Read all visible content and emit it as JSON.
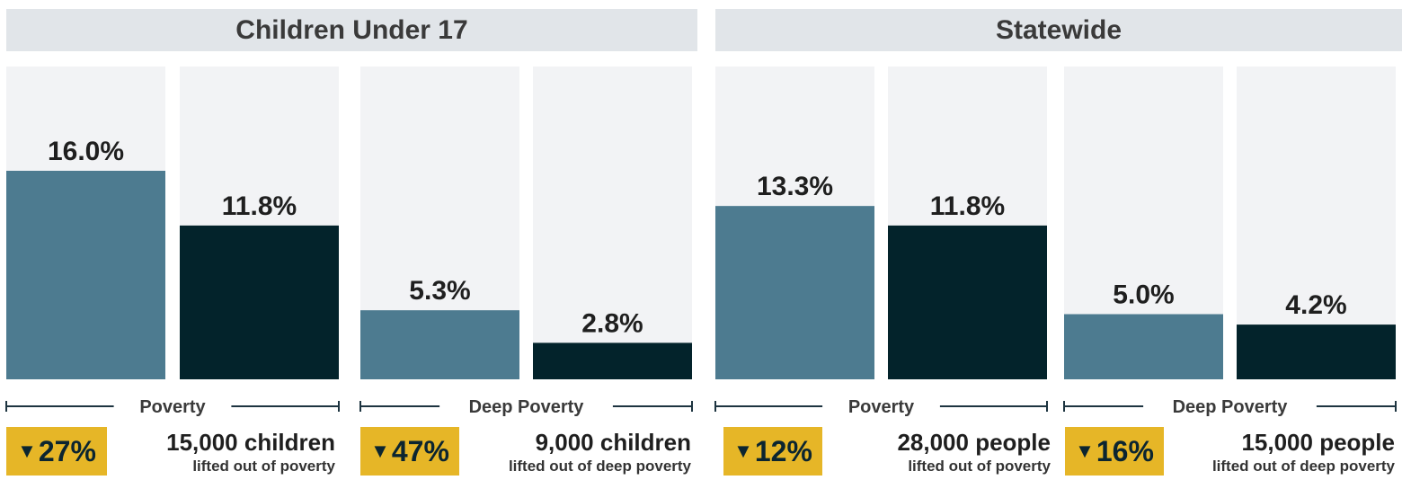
{
  "colors": {
    "background_track": "#f2f3f5",
    "series_1": "#4d7b90",
    "series_2": "#03232b",
    "badge": "#e6b627",
    "header_bg": "#e1e5e9"
  },
  "headers": {
    "left": "Children Under 17",
    "right": "Statewide"
  },
  "chart_data": {
    "type": "bar",
    "ylim": [
      0,
      30
    ],
    "groups": [
      {
        "label": "Poverty",
        "values": [
          16.0,
          11.8
        ],
        "labels": [
          "16.0%",
          "11.8%"
        ]
      },
      {
        "label": "Deep Poverty",
        "values": [
          5.3,
          2.8
        ],
        "labels": [
          "5.3%",
          "2.8%"
        ]
      },
      {
        "label": "Poverty",
        "values": [
          13.3,
          11.8
        ],
        "labels": [
          "13.3%",
          "11.8%"
        ]
      },
      {
        "label": "Deep Poverty",
        "values": [
          5.0,
          4.2
        ],
        "labels": [
          "5.0%",
          "4.2%"
        ]
      }
    ]
  },
  "stats": [
    {
      "badge": "27%",
      "count": "15,000 children",
      "note": "lifted out of poverty"
    },
    {
      "badge": "47%",
      "count": "9,000 children",
      "note": "lifted out of deep poverty"
    },
    {
      "badge": "12%",
      "count": "28,000 people",
      "note": "lifted out of poverty"
    },
    {
      "badge": "16%",
      "count": "15,000 people",
      "note": "lifted out of deep poverty"
    }
  ]
}
